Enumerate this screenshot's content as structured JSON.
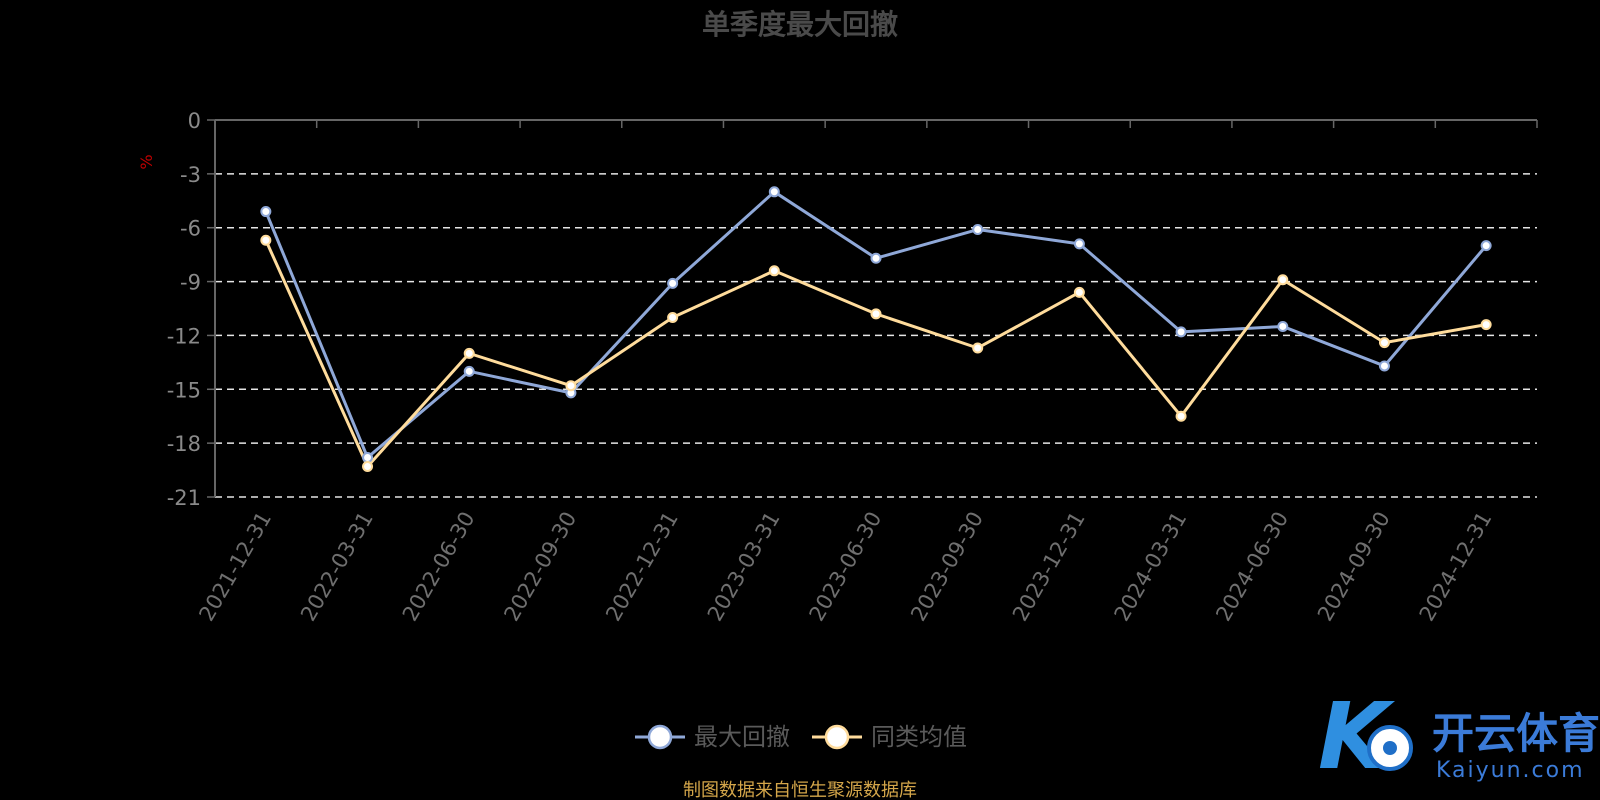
{
  "title": "单季度最大回撤",
  "unit": "%",
  "source": "制图数据来自恒生聚源数据库",
  "watermark": {
    "cn": "开云体育",
    "en": "Kaiyun.com",
    "logo": "K"
  },
  "colors": {
    "series1": "#8fa8d8",
    "series2": "#ffdc9c",
    "grid": "#e6e6e6",
    "axis": "#666666"
  },
  "chart_data": {
    "type": "line",
    "title": "单季度最大回撤",
    "ylabel": "%",
    "ylim": [
      -21,
      0
    ],
    "yticks": [
      0,
      -3,
      -6,
      -9,
      -12,
      -15,
      -18,
      -21
    ],
    "grid": true,
    "legend_position": "bottom-center",
    "categories": [
      "2021-12-31",
      "2022-03-31",
      "2022-06-30",
      "2022-09-30",
      "2022-12-31",
      "2023-03-31",
      "2023-06-30",
      "2023-09-30",
      "2023-12-31",
      "2024-03-31",
      "2024-06-30",
      "2024-09-30",
      "2024-12-31"
    ],
    "series": [
      {
        "name": "最大回撤",
        "values": [
          -5.1,
          -18.8,
          -14.0,
          -15.2,
          -9.1,
          -4.0,
          -7.7,
          -6.1,
          -6.9,
          -11.8,
          -11.5,
          -13.7,
          -7.0
        ]
      },
      {
        "name": "同类均值",
        "values": [
          -6.7,
          -19.3,
          -13.0,
          -14.8,
          -11.0,
          -8.4,
          -10.8,
          -12.7,
          -9.6,
          -16.5,
          -8.9,
          -12.4,
          -11.4
        ]
      }
    ]
  }
}
